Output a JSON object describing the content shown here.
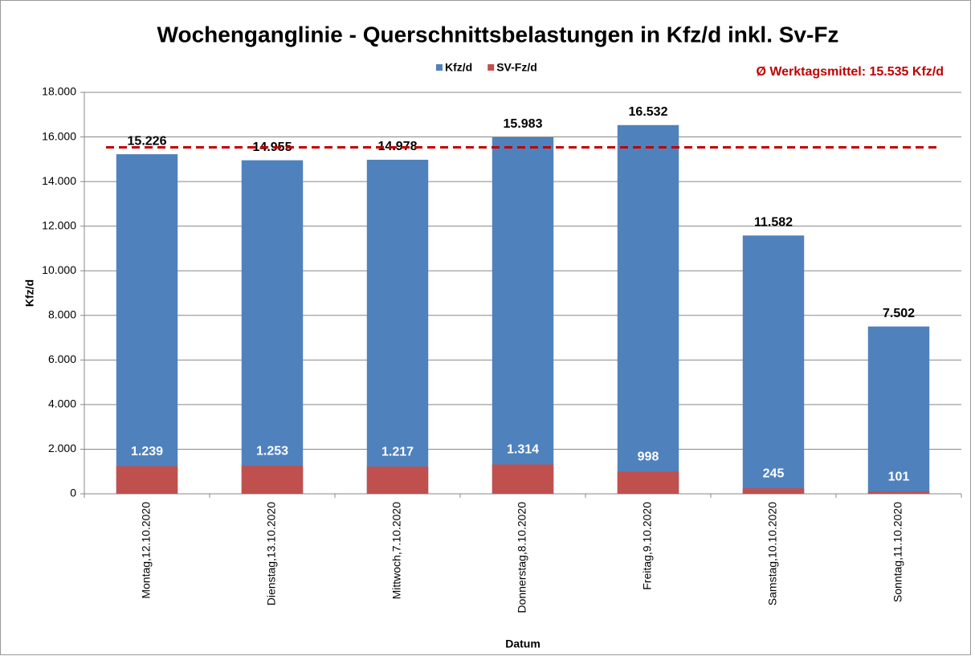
{
  "chart_data": {
    "type": "bar",
    "title": "Wochenganglinie - Querschnittsbelastungen in Kfz/d inkl. Sv-Fz",
    "x_label": "Datum",
    "y_label": "Kfz/d",
    "categories": [
      "Montag,12.10.2020",
      "Dienstag,13.10.2020",
      "Mittwoch,7.10.2020",
      "Donnerstag,8.10.2020",
      "Freitag,9.10.2020",
      "Samstag,10.10.2020",
      "Sonntag,11.10.2020"
    ],
    "series": [
      {
        "name": "Kfz/d",
        "color": "#4f81bd",
        "values": [
          15226,
          14955,
          14978,
          15983,
          16532,
          11582,
          7502
        ],
        "value_labels": [
          "15.226",
          "14.955",
          "14.978",
          "15.983",
          "16.532",
          "11.582",
          "7.502"
        ]
      },
      {
        "name": "SV-Fz/d",
        "color": "#c0504d",
        "values": [
          1239,
          1253,
          1217,
          1314,
          998,
          245,
          101
        ],
        "value_labels": [
          "1.239",
          "1.253",
          "1.217",
          "1.314",
          "998",
          "245",
          "101"
        ]
      }
    ],
    "reference_line": {
      "value": 15535,
      "label": "Ø Werktagsmittel: 15.535 Kfz/d",
      "color": "#c00000"
    },
    "ylim": [
      0,
      18000
    ],
    "yticks": [
      0,
      {
        "value": 2000,
        "label": "2.000"
      },
      {
        "value": 4000,
        "label": "4.000"
      },
      {
        "value": 6000,
        "label": "6.000"
      },
      {
        "value": 8000,
        "label": "8.000"
      },
      {
        "value": 10000,
        "label": "10.000"
      },
      {
        "value": 12000,
        "label": "12.000"
      },
      {
        "value": 14000,
        "label": "14.000"
      },
      {
        "value": 16000,
        "label": "16.000"
      },
      {
        "value": 18000,
        "label": "18.000"
      }
    ],
    "grid": true,
    "legend": "top"
  }
}
